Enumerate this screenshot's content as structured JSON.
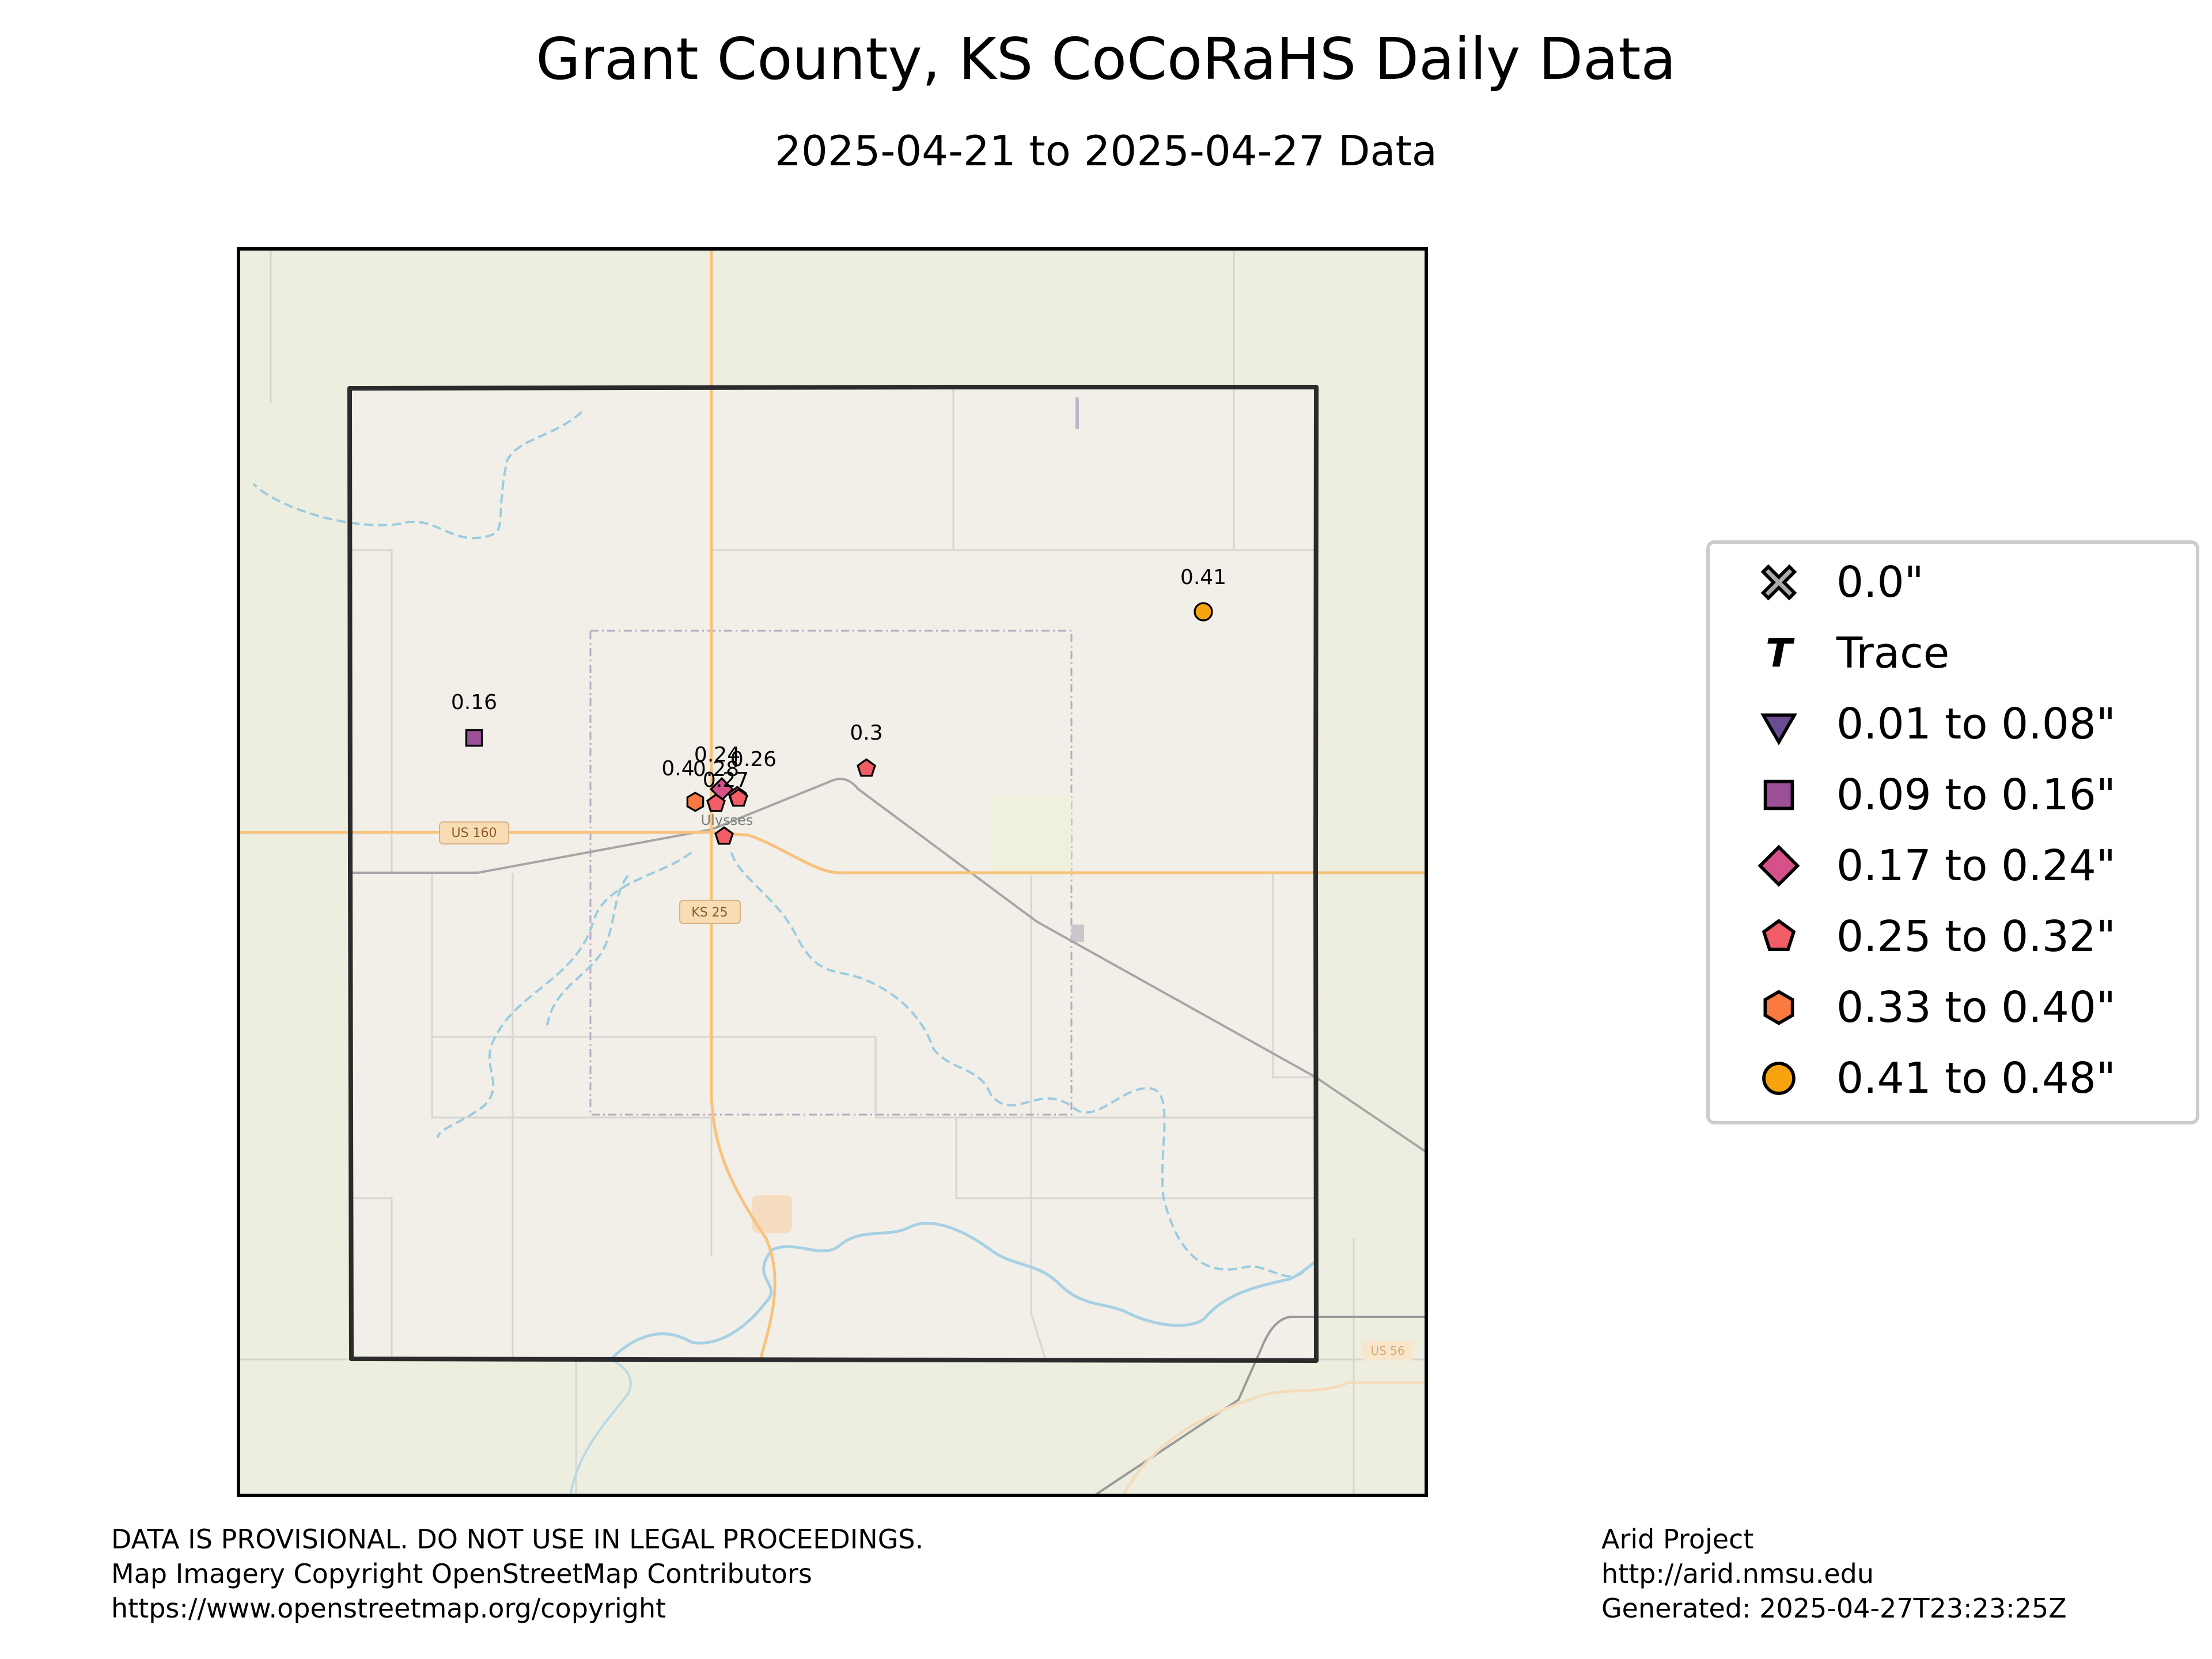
{
  "title": "Grant County, KS CoCoRaHS Daily Data",
  "subtitle": "2025-04-21 to 2025-04-27 Data",
  "map": {
    "place_label": "Ulysses",
    "road_labels": [
      "US 160",
      "KS 25",
      "US 56"
    ]
  },
  "chart_data": {
    "type": "scatter",
    "title": "Grant County, KS CoCoRaHS Daily Data",
    "subtitle": "2025-04-21 to 2025-04-27 Data",
    "units": "inches",
    "categories": [
      {
        "label": "0.0\"",
        "marker": "x-cross",
        "color": "#aaaaaa"
      },
      {
        "label": "Trace",
        "marker": "T",
        "color": "#000000"
      },
      {
        "label": "0.01 to 0.08\"",
        "marker": "triangle-down",
        "color": "#6a4c93"
      },
      {
        "label": "0.09 to 0.16\"",
        "marker": "square",
        "color": "#9b4f96"
      },
      {
        "label": "0.17 to 0.24\"",
        "marker": "diamond",
        "color": "#d6508a"
      },
      {
        "label": "0.25 to 0.32\"",
        "marker": "pentagon",
        "color": "#f25c66"
      },
      {
        "label": "0.33 to 0.40\"",
        "marker": "hexagon",
        "color": "#fb7a3f"
      },
      {
        "label": "0.41 to 0.48\"",
        "marker": "circle",
        "color": "#f7a30e"
      }
    ],
    "stations": [
      {
        "value": 0.41,
        "label": "0.41",
        "category": 7
      },
      {
        "value": 0.16,
        "label": "0.16",
        "category": 3
      },
      {
        "value": 0.3,
        "label": "0.3",
        "category": 5
      },
      {
        "value": 0.24,
        "label": "0.24",
        "category": 4
      },
      {
        "value": 0.26,
        "label": "0.26",
        "category": 5
      },
      {
        "value": 0.4,
        "label": "0.4",
        "category": 6
      },
      {
        "value": 0.28,
        "label": "0.28",
        "category": 5
      },
      {
        "value": 0.27,
        "label": "0.27",
        "category": 5
      },
      {
        "value": 0.3,
        "label": "",
        "category": 5
      }
    ]
  },
  "legend": {
    "placement": "right",
    "items": [
      {
        "label": "0.0\""
      },
      {
        "label": "Trace"
      },
      {
        "label": "0.01 to 0.08\""
      },
      {
        "label": "0.09 to 0.16\""
      },
      {
        "label": "0.17 to 0.24\""
      },
      {
        "label": "0.25 to 0.32\""
      },
      {
        "label": "0.33 to 0.40\""
      },
      {
        "label": "0.41 to 0.48\""
      }
    ]
  },
  "footer_left": {
    "line1": "DATA IS PROVISIONAL. DO NOT USE IN LEGAL PROCEEDINGS.",
    "line2": "Map Imagery Copyright OpenStreetMap Contributors",
    "line3": "https://www.openstreetmap.org/copyright"
  },
  "footer_right": {
    "line1": "Arid Project",
    "line2": "http://arid.nmsu.edu",
    "line3": "Generated: 2025-04-27T23:23:25Z"
  }
}
